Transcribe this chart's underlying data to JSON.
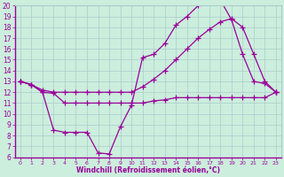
{
  "xlabel": "Windchill (Refroidissement éolien,°C)",
  "bg_color": "#cceedd",
  "line_color": "#990099",
  "xlim": [
    -0.5,
    23.5
  ],
  "ylim": [
    6,
    20
  ],
  "yticks": [
    6,
    7,
    8,
    9,
    10,
    11,
    12,
    13,
    14,
    15,
    16,
    17,
    18,
    19,
    20
  ],
  "xticks": [
    0,
    1,
    2,
    3,
    4,
    5,
    6,
    7,
    8,
    9,
    10,
    11,
    12,
    13,
    14,
    15,
    16,
    17,
    18,
    19,
    20,
    21,
    22,
    23
  ],
  "line1_x": [
    0,
    1,
    2,
    3,
    4,
    5,
    6,
    7,
    8,
    9,
    10,
    11,
    12,
    13,
    14,
    15,
    16,
    17,
    18,
    19,
    20,
    21,
    22,
    23
  ],
  "line1_y": [
    13,
    12.7,
    12.0,
    11.9,
    11.0,
    11.0,
    11.0,
    11.0,
    11.0,
    11.0,
    11.0,
    11.0,
    11.2,
    11.3,
    11.5,
    11.5,
    11.5,
    11.5,
    11.5,
    11.5,
    11.5,
    11.5,
    11.5,
    12.0
  ],
  "line2_x": [
    0,
    1,
    2,
    3,
    4,
    5,
    6,
    7,
    8,
    9,
    10,
    11,
    12,
    13,
    14,
    15,
    16,
    17,
    18,
    19,
    20,
    21,
    22,
    23
  ],
  "line2_y": [
    13,
    12.7,
    12.0,
    8.5,
    8.3,
    8.3,
    8.3,
    6.4,
    6.3,
    8.8,
    10.8,
    15.2,
    15.5,
    16.5,
    18.2,
    19.0,
    20.0,
    20.3,
    20.5,
    18.7,
    15.5,
    13.0,
    12.8,
    12.0
  ],
  "line3_x": [
    0,
    1,
    2,
    3,
    4,
    5,
    6,
    7,
    8,
    9,
    10,
    11,
    12,
    13,
    14,
    15,
    16,
    17,
    18,
    19,
    20,
    21,
    22,
    23
  ],
  "line3_y": [
    13,
    12.7,
    12.2,
    12.0,
    12.0,
    12.0,
    12.0,
    12.0,
    12.0,
    12.0,
    12.0,
    12.5,
    13.2,
    14.0,
    15.0,
    16.0,
    17.0,
    17.8,
    18.5,
    18.8,
    18.0,
    15.5,
    13.0,
    12.0
  ]
}
